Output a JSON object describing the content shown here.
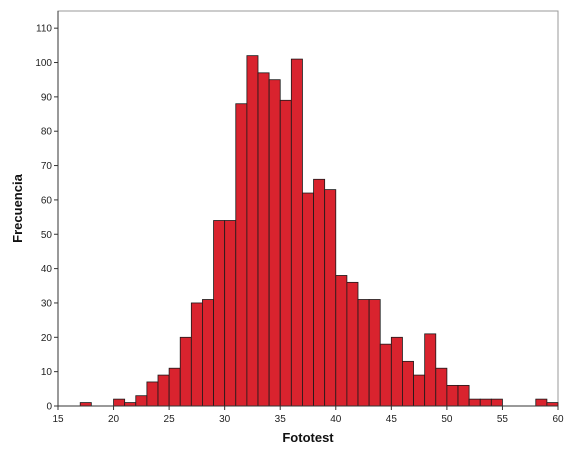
{
  "chart_data": {
    "type": "bar",
    "title": "",
    "xlabel": "Fototest",
    "ylabel": "Frecuencia",
    "xlim": [
      15,
      60
    ],
    "ylim": [
      0,
      115
    ],
    "xticks": [
      15,
      20,
      25,
      30,
      35,
      40,
      45,
      50,
      55,
      60
    ],
    "yticks": [
      0,
      10,
      20,
      30,
      40,
      50,
      60,
      70,
      80,
      90,
      100,
      110
    ],
    "bin_width": 1,
    "bins": [
      {
        "x": 17,
        "value": 1
      },
      {
        "x": 20,
        "value": 2
      },
      {
        "x": 21,
        "value": 1
      },
      {
        "x": 22,
        "value": 3
      },
      {
        "x": 23,
        "value": 7
      },
      {
        "x": 24,
        "value": 9
      },
      {
        "x": 25,
        "value": 11
      },
      {
        "x": 26,
        "value": 20
      },
      {
        "x": 27,
        "value": 30
      },
      {
        "x": 28,
        "value": 31
      },
      {
        "x": 29,
        "value": 54
      },
      {
        "x": 30,
        "value": 54
      },
      {
        "x": 31,
        "value": 88
      },
      {
        "x": 32,
        "value": 102
      },
      {
        "x": 33,
        "value": 97
      },
      {
        "x": 34,
        "value": 95
      },
      {
        "x": 35,
        "value": 89
      },
      {
        "x": 36,
        "value": 101
      },
      {
        "x": 37,
        "value": 62
      },
      {
        "x": 38,
        "value": 66
      },
      {
        "x": 39,
        "value": 63
      },
      {
        "x": 40,
        "value": 38
      },
      {
        "x": 41,
        "value": 36
      },
      {
        "x": 42,
        "value": 31
      },
      {
        "x": 43,
        "value": 31
      },
      {
        "x": 44,
        "value": 18
      },
      {
        "x": 45,
        "value": 20
      },
      {
        "x": 46,
        "value": 13
      },
      {
        "x": 47,
        "value": 9
      },
      {
        "x": 48,
        "value": 21
      },
      {
        "x": 49,
        "value": 11
      },
      {
        "x": 50,
        "value": 6
      },
      {
        "x": 51,
        "value": 6
      },
      {
        "x": 52,
        "value": 2
      },
      {
        "x": 53,
        "value": 2
      },
      {
        "x": 54,
        "value": 2
      },
      {
        "x": 58,
        "value": 2
      },
      {
        "x": 59,
        "value": 1
      }
    ],
    "grid": false,
    "legend": "none",
    "colors": {
      "bar_fill": "#d9232e",
      "bar_stroke": "#1a1a1a",
      "axis": "#333333",
      "frame": "#9a9a9a"
    }
  }
}
